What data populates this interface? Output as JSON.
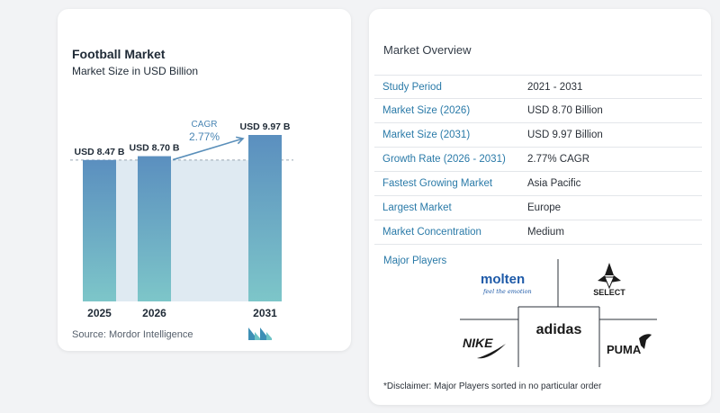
{
  "chart": {
    "title": "Football Market",
    "subtitle": "Market Size in USD Billion",
    "source": "Source:  Mordor Intelligence"
  },
  "chart_data": {
    "type": "bar",
    "categories": [
      "2025",
      "2026",
      "2031"
    ],
    "values": [
      8.47,
      8.7,
      9.97
    ],
    "value_labels": [
      "USD 8.47 B",
      "USD 8.70 B",
      "USD 9.97 B"
    ],
    "cagr_label": "CAGR",
    "cagr_value": "2.77%",
    "title": "Football Market",
    "ylabel": "Market Size in USD Billion",
    "grid": false,
    "colors": {
      "bar_top": "#5b8fbf",
      "bar_bottom": "#7dc6c9",
      "band": "#dfeaf2",
      "arrow": "#5a8fba",
      "dash": "#9aa8b4"
    }
  },
  "overview": {
    "title": "Market Overview",
    "rows": [
      {
        "key": "Study Period",
        "value": "2021 - 2031"
      },
      {
        "key": "Market Size (2026)",
        "value": "USD 8.70 Billion"
      },
      {
        "key": "Market Size (2031)",
        "value": "USD 9.97 Billion"
      },
      {
        "key": "Growth Rate (2026 - 2031)",
        "value": "2.77% CAGR"
      },
      {
        "key": "Fastest Growing Market",
        "value": "Asia Pacific"
      },
      {
        "key": "Largest Market",
        "value": "Europe"
      },
      {
        "key": "Market Concentration",
        "value": "Medium"
      }
    ]
  },
  "players": {
    "title": "Major Players",
    "logos": {
      "molten": "molten",
      "molten_tagline": "feel the emotion",
      "select": "SELECT",
      "adidas": "adidas",
      "nike": "NIKE",
      "puma": "PUMA"
    }
  },
  "disclaimer": "*Disclaimer: Major Players sorted in no particular order"
}
